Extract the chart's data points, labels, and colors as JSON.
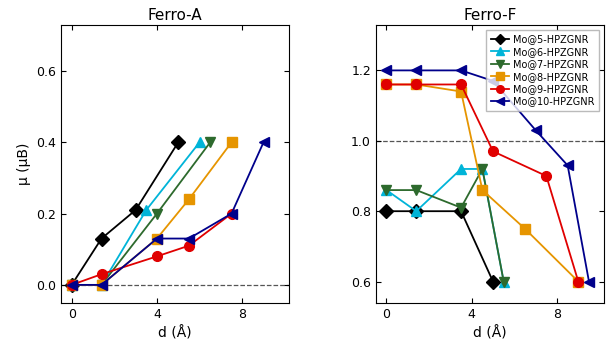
{
  "ferro_a": {
    "Mo5": {
      "x": [
        0,
        1.4,
        3.0,
        5.0
      ],
      "y": [
        0.0,
        0.13,
        0.21,
        0.4
      ]
    },
    "Mo6": {
      "x": [
        0,
        1.4,
        3.5,
        6.0
      ],
      "y": [
        0.0,
        0.0,
        0.21,
        0.4
      ]
    },
    "Mo7": {
      "x": [
        0,
        1.4,
        4.0,
        6.5
      ],
      "y": [
        0.0,
        0.0,
        0.2,
        0.4
      ]
    },
    "Mo8": {
      "x": [
        0,
        1.4,
        4.0,
        5.5,
        7.5
      ],
      "y": [
        0.0,
        0.0,
        0.13,
        0.24,
        0.4
      ]
    },
    "Mo9": {
      "x": [
        0,
        1.4,
        4.0,
        5.5,
        7.5
      ],
      "y": [
        0.0,
        0.03,
        0.08,
        0.11,
        0.2
      ]
    },
    "Mo10": {
      "x": [
        0,
        1.4,
        4.0,
        5.5,
        7.5,
        9.0
      ],
      "y": [
        0.0,
        0.0,
        0.13,
        0.13,
        0.2,
        0.4
      ]
    }
  },
  "ferro_f": {
    "Mo5": {
      "x": [
        0,
        1.4,
        3.5,
        5.0
      ],
      "y": [
        0.8,
        0.8,
        0.8,
        0.6
      ]
    },
    "Mo6": {
      "x": [
        0,
        1.4,
        3.5,
        4.5,
        5.5
      ],
      "y": [
        0.86,
        0.8,
        0.92,
        0.92,
        0.6
      ]
    },
    "Mo7": {
      "x": [
        0,
        1.4,
        3.5,
        4.5,
        5.5
      ],
      "y": [
        0.86,
        0.86,
        0.81,
        0.92,
        0.6
      ]
    },
    "Mo8": {
      "x": [
        0,
        1.4,
        3.5,
        4.5,
        6.5,
        9.0
      ],
      "y": [
        1.16,
        1.16,
        1.14,
        0.86,
        0.75,
        0.6
      ]
    },
    "Mo9": {
      "x": [
        0,
        1.4,
        3.5,
        5.0,
        7.5,
        9.0
      ],
      "y": [
        1.16,
        1.16,
        1.16,
        0.97,
        0.9,
        0.6
      ]
    },
    "Mo10": {
      "x": [
        0,
        1.4,
        3.5,
        5.0,
        7.0,
        8.5,
        9.5
      ],
      "y": [
        1.2,
        1.2,
        1.2,
        1.17,
        1.03,
        0.93,
        0.6
      ]
    }
  },
  "series_colors": {
    "Mo5": "#000000",
    "Mo6": "#00b4d8",
    "Mo7": "#2d6a2d",
    "Mo8": "#e69500",
    "Mo9": "#e00000",
    "Mo10": "#00008B"
  },
  "series_labels": {
    "Mo5": "Mo@5-HPZGNR",
    "Mo6": "Mo@6-HPZGNR",
    "Mo7": "Mo@7-HPZGNR",
    "Mo8": "Mo@8-HPZGNR",
    "Mo9": "Mo@9-HPZGNR",
    "Mo10": "Mo@10-HPZGNR"
  },
  "series_markers": {
    "Mo5": "D",
    "Mo6": "^",
    "Mo7": "v",
    "Mo8": "s",
    "Mo9": "o",
    "Mo10": "<"
  },
  "title_a": "Ferro-A",
  "title_f": "Ferro-F",
  "xlabel": "d (Å)",
  "ylabel": "μ (μB)",
  "ylim_a": [
    -0.05,
    0.73
  ],
  "ylim_f": [
    0.54,
    1.33
  ],
  "xlim": [
    -0.5,
    10.2
  ],
  "yticks_a": [
    0.0,
    0.2,
    0.4,
    0.6
  ],
  "yticks_f": [
    0.6,
    0.8,
    1.0,
    1.2
  ],
  "xticks": [
    0,
    4,
    8
  ]
}
